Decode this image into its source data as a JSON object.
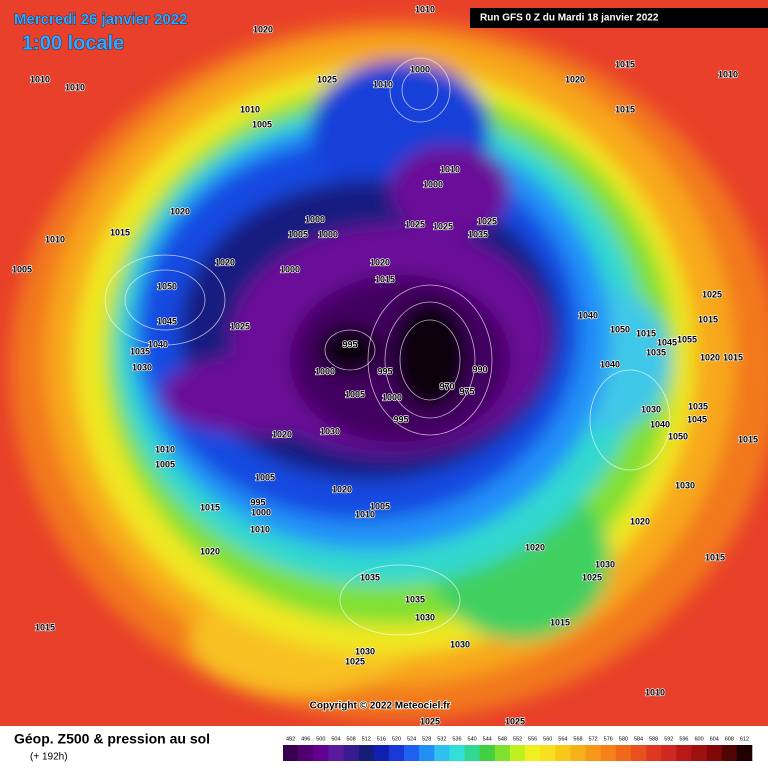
{
  "header": {
    "date": "Mercredi 26 janvier 2022",
    "time": "1:00 locale",
    "run": "Run GFS 0 Z du Mardi 18 janvier 2022"
  },
  "isobar_labels": [
    1010,
    1020,
    1010,
    1010,
    1025,
    1010,
    1000,
    1020,
    1015,
    1010,
    1010,
    1005,
    1015,
    1010,
    1000,
    1020,
    1010,
    1015,
    1000,
    1005,
    1000,
    1025,
    1025,
    1025,
    1035,
    1020,
    1000,
    1020,
    1015,
    1005,
    1050,
    1045,
    1025,
    995,
    1000,
    995,
    970,
    975,
    990,
    1000,
    995,
    1030,
    1020,
    1005,
    1040,
    1035,
    1030,
    1010,
    1005,
    1005,
    995,
    1000,
    1015,
    1010,
    1020,
    1010,
    1005,
    1020,
    1035,
    1035,
    1030,
    1015,
    1030,
    1025,
    1030,
    1015,
    1020,
    1020,
    1030,
    1025,
    1030,
    1015,
    1015,
    1010,
    1025,
    1025,
    1025,
    1015,
    1020,
    1040,
    1030,
    1040,
    1050,
    1035,
    1045,
    1035,
    1045,
    1055,
    1040,
    1050,
    1015,
    1015
  ],
  "footer": {
    "title": "Géop. Z500 & pression au sol",
    "lead": "(+ 192h)",
    "copyright": "Copyright © 2022 Meteociel.fr"
  },
  "legend": {
    "labels": [
      492,
      496,
      500,
      504,
      508,
      512,
      516,
      520,
      524,
      528,
      532,
      536,
      540,
      544,
      548,
      552,
      556,
      560,
      564,
      568,
      572,
      576,
      580,
      584,
      588,
      592,
      596,
      600,
      604,
      608,
      612
    ],
    "colors": [
      "#3a0050",
      "#500070",
      "#640090",
      "#5a1aa0",
      "#3a1a90",
      "#141e78",
      "#1020b0",
      "#1838d8",
      "#1e60f0",
      "#2090f8",
      "#30c0f0",
      "#30e0d8",
      "#30d890",
      "#40d040",
      "#80e030",
      "#c0f020",
      "#f0f020",
      "#f8e020",
      "#f8c818",
      "#f8b018",
      "#f89818",
      "#f88018",
      "#f06818",
      "#e85020",
      "#e03820",
      "#d02820",
      "#b81818",
      "#a01010",
      "#800808",
      "#500404",
      "#200000"
    ]
  }
}
